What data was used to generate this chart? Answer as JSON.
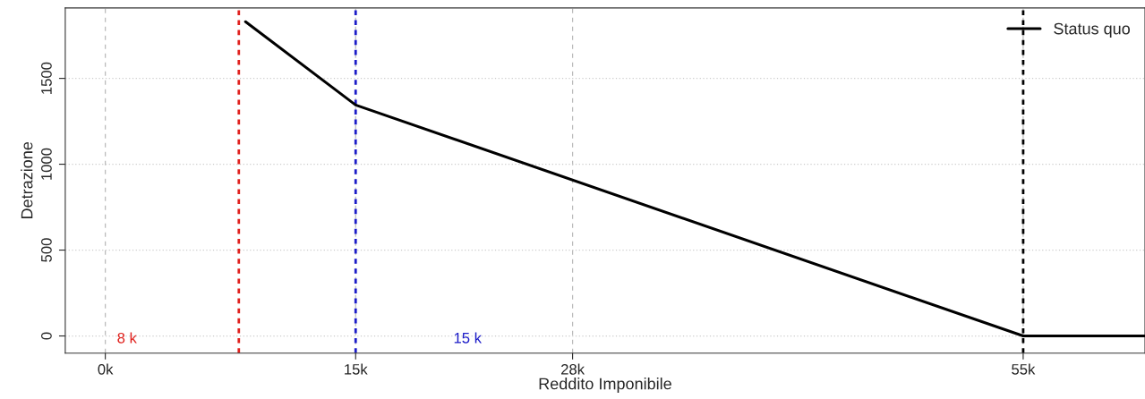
{
  "chart_data": {
    "type": "line",
    "xlabel": "Reddito Imponibile",
    "ylabel": "Detrazione",
    "x": [
      8.4,
      15,
      55,
      62.3
    ],
    "series": [
      {
        "name": "Status quo",
        "color": "#000000",
        "values": [
          1830,
          1345,
          0,
          0
        ]
      }
    ],
    "xlim": [
      -2.4,
      62.3
    ],
    "ylim": [
      -100,
      1910
    ],
    "xticks": [
      {
        "value": 0,
        "label": "0k"
      },
      {
        "value": 15,
        "label": "15k"
      },
      {
        "value": 28,
        "label": "28k"
      },
      {
        "value": 55,
        "label": "55k"
      }
    ],
    "yticks": [
      0,
      500,
      1000,
      1500
    ],
    "ref_lines": [
      {
        "axis": "x",
        "value": 8,
        "label": "8 k",
        "color": "#e0201c",
        "line_style": "dotted"
      },
      {
        "axis": "x",
        "value": 15,
        "label": "15 k",
        "color": "#1c1cc8",
        "line_style": "dotted"
      },
      {
        "axis": "x",
        "value": 55,
        "color": "#000000",
        "line_style": "dotted"
      }
    ],
    "grid": true,
    "legend": "top right",
    "marker": "none",
    "line_style": "solid"
  }
}
